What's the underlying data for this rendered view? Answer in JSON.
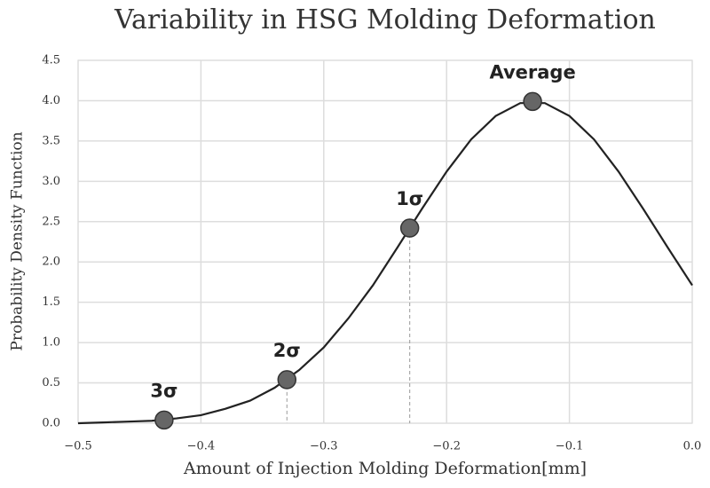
{
  "chart_data": {
    "type": "line",
    "title": "Variability in HSG Molding Deformation",
    "x_label": "Amount of Injection Molding Deformation[mm]",
    "y_label": "Probability Density Function",
    "x": [
      -0.5,
      -0.48,
      -0.46,
      -0.44,
      -0.42,
      -0.4,
      -0.38,
      -0.36,
      -0.34,
      -0.32,
      -0.3,
      -0.28,
      -0.26,
      -0.24,
      -0.22,
      -0.2,
      -0.18,
      -0.16,
      -0.14,
      -0.12,
      -0.1,
      -0.08,
      -0.06,
      -0.04,
      -0.02,
      0.0
    ],
    "series": [
      {
        "color": "#222222",
        "values": [
          0.0,
          0.01,
          0.02,
          0.03,
          0.06,
          0.1,
          0.18,
          0.28,
          0.44,
          0.66,
          0.94,
          1.3,
          1.71,
          2.18,
          2.66,
          3.12,
          3.52,
          3.81,
          3.97,
          3.97,
          3.81,
          3.52,
          3.12,
          2.66,
          2.18,
          1.71
        ]
      }
    ],
    "points": {
      "x": [
        -0.43,
        -0.33,
        -0.23,
        -0.13
      ],
      "values": [
        0.04,
        0.54,
        2.42,
        3.99
      ],
      "labels": [
        "3σ",
        "2σ",
        "1σ",
        "Average"
      ],
      "color": "#666666"
    },
    "xlim": [
      -0.5,
      0.0
    ],
    "ylim": [
      0,
      4.5
    ],
    "xticks": [
      {
        "value": -0.5,
        "label": "−0.5"
      },
      {
        "value": -0.4,
        "label": "−0.4"
      },
      {
        "value": -0.3,
        "label": "−0.3"
      },
      {
        "value": -0.2,
        "label": "−0.2"
      },
      {
        "value": -0.1,
        "label": "−0.1"
      },
      {
        "value": 0.0,
        "label": "0.0"
      }
    ],
    "yticks": [
      {
        "value": 0,
        "label": "0.0"
      },
      0.5,
      {
        "value": 1,
        "label": "1.0"
      },
      1.5,
      {
        "value": 2,
        "label": "2.0"
      },
      2.5,
      {
        "value": 3,
        "label": "3.0"
      },
      3.5,
      {
        "value": 4,
        "label": "4.0"
      },
      4.5
    ],
    "grid": true
  }
}
